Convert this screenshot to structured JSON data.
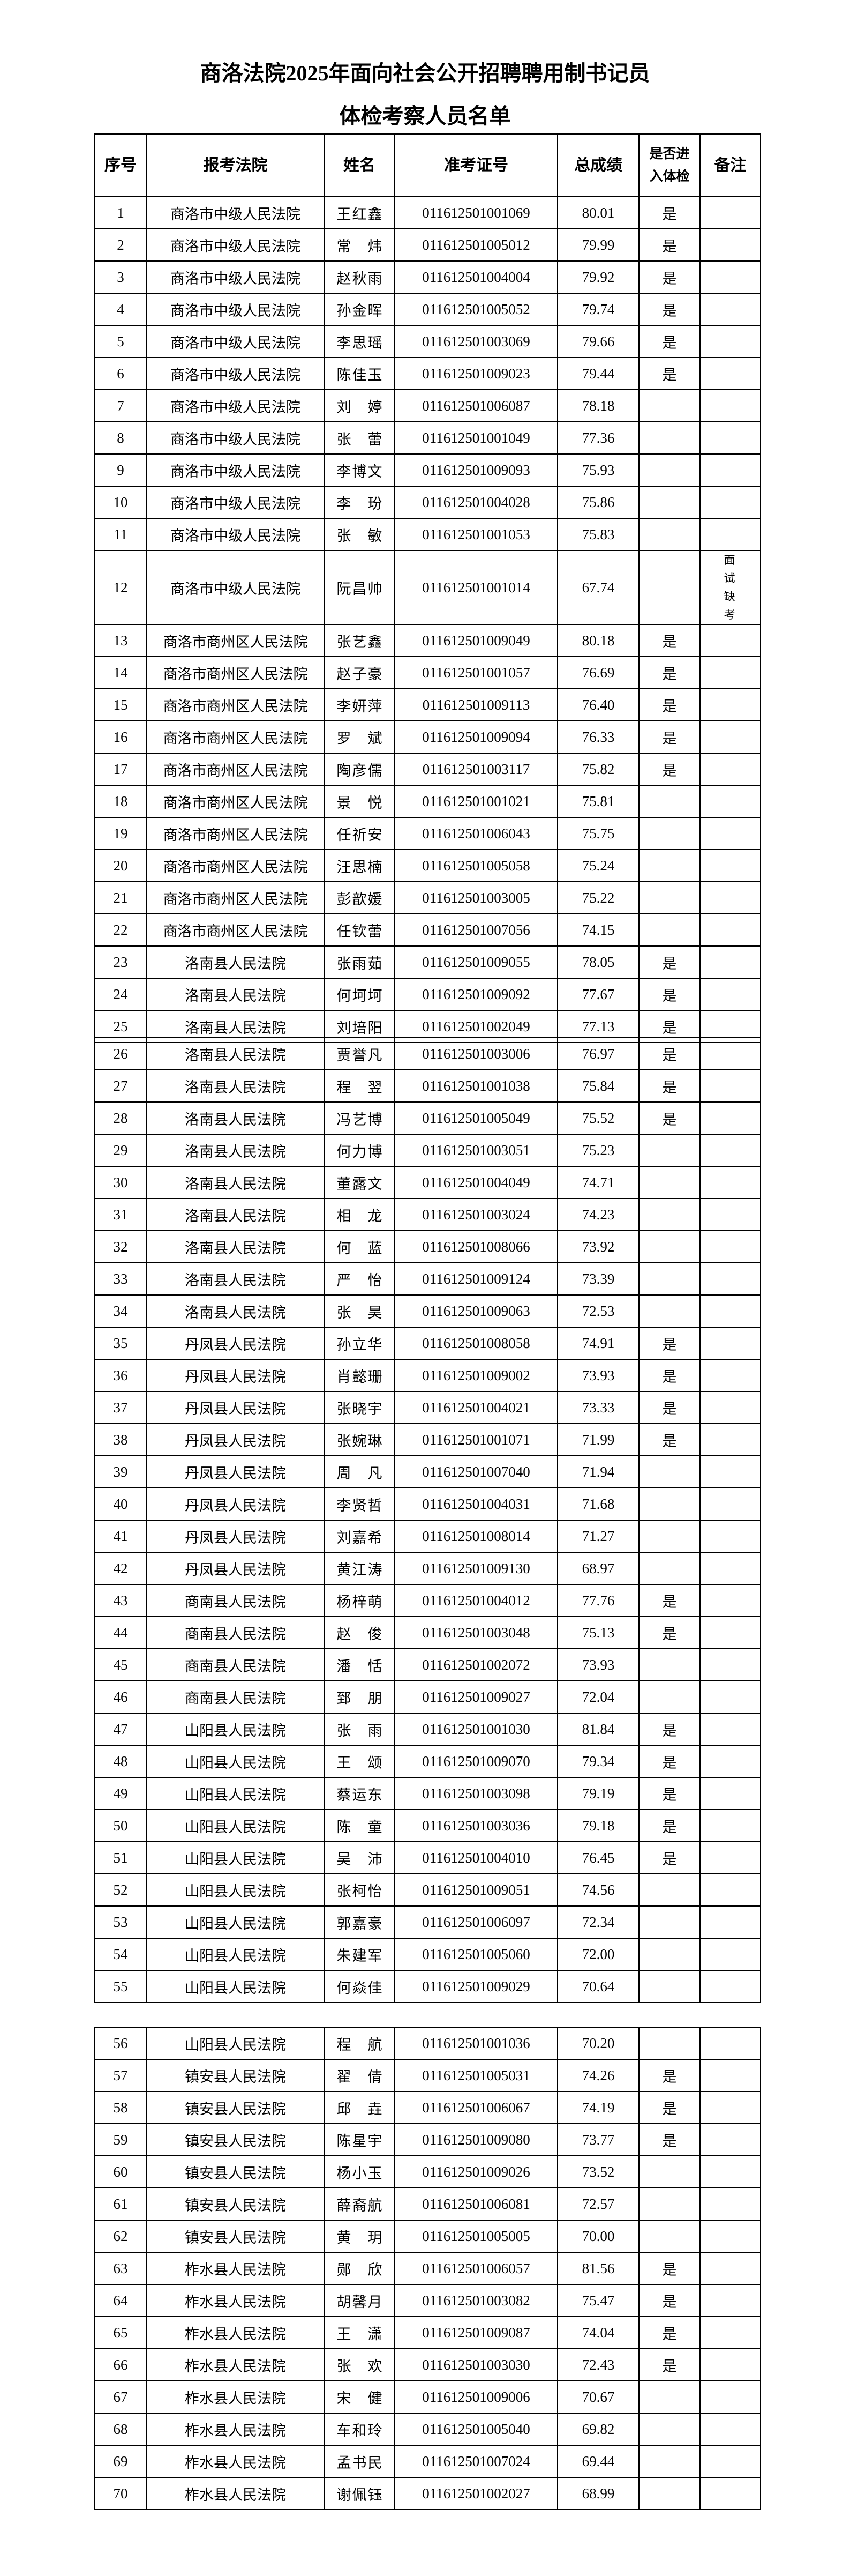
{
  "document": {
    "title_line1": "商洛法院2025年面向社会公开招聘聘用制书记员",
    "title_line2": "体检考察人员名单"
  },
  "table": {
    "headers": {
      "no": "序号",
      "court": "报考法院",
      "name": "姓名",
      "exam_id": "准考证号",
      "score": "总成绩",
      "physical_exam": "是否进入体检",
      "remark": "备注"
    },
    "rows": [
      {
        "no": "1",
        "court": "商洛市中级人民法院",
        "name": "王红鑫",
        "id": "011612501001069",
        "score": "80.01",
        "exam": "是",
        "remark": ""
      },
      {
        "no": "2",
        "court": "商洛市中级人民法院",
        "name": "常炜",
        "id": "011612501005012",
        "score": "79.99",
        "exam": "是",
        "remark": ""
      },
      {
        "no": "3",
        "court": "商洛市中级人民法院",
        "name": "赵秋雨",
        "id": "011612501004004",
        "score": "79.92",
        "exam": "是",
        "remark": ""
      },
      {
        "no": "4",
        "court": "商洛市中级人民法院",
        "name": "孙金晖",
        "id": "011612501005052",
        "score": "79.74",
        "exam": "是",
        "remark": ""
      },
      {
        "no": "5",
        "court": "商洛市中级人民法院",
        "name": "李思瑶",
        "id": "011612501003069",
        "score": "79.66",
        "exam": "是",
        "remark": ""
      },
      {
        "no": "6",
        "court": "商洛市中级人民法院",
        "name": "陈佳玉",
        "id": "011612501009023",
        "score": "79.44",
        "exam": "是",
        "remark": ""
      },
      {
        "no": "7",
        "court": "商洛市中级人民法院",
        "name": "刘婷",
        "id": "011612501006087",
        "score": "78.18",
        "exam": "",
        "remark": ""
      },
      {
        "no": "8",
        "court": "商洛市中级人民法院",
        "name": "张蕾",
        "id": "011612501001049",
        "score": "77.36",
        "exam": "",
        "remark": ""
      },
      {
        "no": "9",
        "court": "商洛市中级人民法院",
        "name": "李博文",
        "id": "011612501009093",
        "score": "75.93",
        "exam": "",
        "remark": ""
      },
      {
        "no": "10",
        "court": "商洛市中级人民法院",
        "name": "李玢",
        "id": "011612501004028",
        "score": "75.86",
        "exam": "",
        "remark": ""
      },
      {
        "no": "11",
        "court": "商洛市中级人民法院",
        "name": "张敏",
        "id": "011612501001053",
        "score": "75.83",
        "exam": "",
        "remark": ""
      },
      {
        "no": "12",
        "court": "商洛市中级人民法院",
        "name": "阮昌帅",
        "id": "011612501001014",
        "score": "67.74",
        "exam": "",
        "remark": "面试缺考"
      },
      {
        "no": "13",
        "court": "商洛市商州区人民法院",
        "name": "张艺鑫",
        "id": "011612501009049",
        "score": "80.18",
        "exam": "是",
        "remark": ""
      },
      {
        "no": "14",
        "court": "商洛市商州区人民法院",
        "name": "赵子豪",
        "id": "011612501001057",
        "score": "76.69",
        "exam": "是",
        "remark": ""
      },
      {
        "no": "15",
        "court": "商洛市商州区人民法院",
        "name": "李妍萍",
        "id": "011612501009113",
        "score": "76.40",
        "exam": "是",
        "remark": ""
      },
      {
        "no": "16",
        "court": "商洛市商州区人民法院",
        "name": "罗斌",
        "id": "011612501009094",
        "score": "76.33",
        "exam": "是",
        "remark": ""
      },
      {
        "no": "17",
        "court": "商洛市商州区人民法院",
        "name": "陶彦儒",
        "id": "011612501003117",
        "score": "75.82",
        "exam": "是",
        "remark": ""
      },
      {
        "no": "18",
        "court": "商洛市商州区人民法院",
        "name": "景悦",
        "id": "011612501001021",
        "score": "75.81",
        "exam": "",
        "remark": ""
      },
      {
        "no": "19",
        "court": "商洛市商州区人民法院",
        "name": "任祈安",
        "id": "011612501006043",
        "score": "75.75",
        "exam": "",
        "remark": ""
      },
      {
        "no": "20",
        "court": "商洛市商州区人民法院",
        "name": "汪思楠",
        "id": "011612501005058",
        "score": "75.24",
        "exam": "",
        "remark": ""
      },
      {
        "no": "21",
        "court": "商洛市商州区人民法院",
        "name": "彭歆媛",
        "id": "011612501003005",
        "score": "75.22",
        "exam": "",
        "remark": ""
      },
      {
        "no": "22",
        "court": "商洛市商州区人民法院",
        "name": "任钦蕾",
        "id": "011612501007056",
        "score": "74.15",
        "exam": "",
        "remark": ""
      },
      {
        "no": "23",
        "court": "洛南县人民法院",
        "name": "张雨茹",
        "id": "011612501009055",
        "score": "78.05",
        "exam": "是",
        "remark": ""
      },
      {
        "no": "24",
        "court": "洛南县人民法院",
        "name": "何坷坷",
        "id": "011612501009092",
        "score": "77.67",
        "exam": "是",
        "remark": ""
      },
      {
        "no": "25",
        "court": "洛南县人民法院",
        "name": "刘培阳",
        "id": "011612501002049",
        "score": "77.13",
        "exam": "是",
        "remark": ""
      },
      {
        "no": "26",
        "court": "洛南县人民法院",
        "name": "贾誉凡",
        "id": "011612501003006",
        "score": "76.97",
        "exam": "是",
        "remark": ""
      },
      {
        "no": "27",
        "court": "洛南县人民法院",
        "name": "程翌",
        "id": "011612501001038",
        "score": "75.84",
        "exam": "是",
        "remark": ""
      },
      {
        "no": "28",
        "court": "洛南县人民法院",
        "name": "冯艺博",
        "id": "011612501005049",
        "score": "75.52",
        "exam": "是",
        "remark": ""
      },
      {
        "no": "29",
        "court": "洛南县人民法院",
        "name": "何力博",
        "id": "011612501003051",
        "score": "75.23",
        "exam": "",
        "remark": ""
      },
      {
        "no": "30",
        "court": "洛南县人民法院",
        "name": "董露文",
        "id": "011612501004049",
        "score": "74.71",
        "exam": "",
        "remark": ""
      },
      {
        "no": "31",
        "court": "洛南县人民法院",
        "name": "相龙",
        "id": "011612501003024",
        "score": "74.23",
        "exam": "",
        "remark": ""
      },
      {
        "no": "32",
        "court": "洛南县人民法院",
        "name": "何蓝",
        "id": "011612501008066",
        "score": "73.92",
        "exam": "",
        "remark": ""
      },
      {
        "no": "33",
        "court": "洛南县人民法院",
        "name": "严怡",
        "id": "011612501009124",
        "score": "73.39",
        "exam": "",
        "remark": ""
      },
      {
        "no": "34",
        "court": "洛南县人民法院",
        "name": "张昊",
        "id": "011612501009063",
        "score": "72.53",
        "exam": "",
        "remark": ""
      },
      {
        "no": "35",
        "court": "丹凤县人民法院",
        "name": "孙立华",
        "id": "011612501008058",
        "score": "74.91",
        "exam": "是",
        "remark": ""
      },
      {
        "no": "36",
        "court": "丹凤县人民法院",
        "name": "肖懿珊",
        "id": "011612501009002",
        "score": "73.93",
        "exam": "是",
        "remark": ""
      },
      {
        "no": "37",
        "court": "丹凤县人民法院",
        "name": "张晓宇",
        "id": "011612501004021",
        "score": "73.33",
        "exam": "是",
        "remark": ""
      },
      {
        "no": "38",
        "court": "丹凤县人民法院",
        "name": "张婉琳",
        "id": "011612501001071",
        "score": "71.99",
        "exam": "是",
        "remark": ""
      },
      {
        "no": "39",
        "court": "丹凤县人民法院",
        "name": "周凡",
        "id": "011612501007040",
        "score": "71.94",
        "exam": "",
        "remark": ""
      },
      {
        "no": "40",
        "court": "丹凤县人民法院",
        "name": "李贤哲",
        "id": "011612501004031",
        "score": "71.68",
        "exam": "",
        "remark": ""
      },
      {
        "no": "41",
        "court": "丹凤县人民法院",
        "name": "刘嘉希",
        "id": "011612501008014",
        "score": "71.27",
        "exam": "",
        "remark": ""
      },
      {
        "no": "42",
        "court": "丹凤县人民法院",
        "name": "黄江涛",
        "id": "011612501009130",
        "score": "68.97",
        "exam": "",
        "remark": ""
      },
      {
        "no": "43",
        "court": "商南县人民法院",
        "name": "杨梓萌",
        "id": "011612501004012",
        "score": "77.76",
        "exam": "是",
        "remark": ""
      },
      {
        "no": "44",
        "court": "商南县人民法院",
        "name": "赵俊",
        "id": "011612501003048",
        "score": "75.13",
        "exam": "是",
        "remark": ""
      },
      {
        "no": "45",
        "court": "商南县人民法院",
        "name": "潘恬",
        "id": "011612501002072",
        "score": "73.93",
        "exam": "",
        "remark": ""
      },
      {
        "no": "46",
        "court": "商南县人民法院",
        "name": "郅朋",
        "id": "011612501009027",
        "score": "72.04",
        "exam": "",
        "remark": ""
      },
      {
        "no": "47",
        "court": "山阳县人民法院",
        "name": "张雨",
        "id": "011612501001030",
        "score": "81.84",
        "exam": "是",
        "remark": ""
      },
      {
        "no": "48",
        "court": "山阳县人民法院",
        "name": "王颂",
        "id": "011612501009070",
        "score": "79.34",
        "exam": "是",
        "remark": ""
      },
      {
        "no": "49",
        "court": "山阳县人民法院",
        "name": "蔡运东",
        "id": "011612501003098",
        "score": "79.19",
        "exam": "是",
        "remark": ""
      },
      {
        "no": "50",
        "court": "山阳县人民法院",
        "name": "陈童",
        "id": "011612501003036",
        "score": "79.18",
        "exam": "是",
        "remark": ""
      },
      {
        "no": "51",
        "court": "山阳县人民法院",
        "name": "吴沛",
        "id": "011612501004010",
        "score": "76.45",
        "exam": "是",
        "remark": ""
      },
      {
        "no": "52",
        "court": "山阳县人民法院",
        "name": "张柯怡",
        "id": "011612501009051",
        "score": "74.56",
        "exam": "",
        "remark": ""
      },
      {
        "no": "53",
        "court": "山阳县人民法院",
        "name": "郭嘉豪",
        "id": "011612501006097",
        "score": "72.34",
        "exam": "",
        "remark": ""
      },
      {
        "no": "54",
        "court": "山阳县人民法院",
        "name": "朱建军",
        "id": "011612501005060",
        "score": "72.00",
        "exam": "",
        "remark": ""
      },
      {
        "no": "55",
        "court": "山阳县人民法院",
        "name": "何焱佳",
        "id": "011612501009029",
        "score": "70.64",
        "exam": "",
        "remark": ""
      },
      {
        "no": "56",
        "court": "山阳县人民法院",
        "name": "程航",
        "id": "011612501001036",
        "score": "70.20",
        "exam": "",
        "remark": ""
      },
      {
        "no": "57",
        "court": "镇安县人民法院",
        "name": "翟倩",
        "id": "011612501005031",
        "score": "74.26",
        "exam": "是",
        "remark": ""
      },
      {
        "no": "58",
        "court": "镇安县人民法院",
        "name": "邱垚",
        "id": "011612501006067",
        "score": "74.19",
        "exam": "是",
        "remark": ""
      },
      {
        "no": "59",
        "court": "镇安县人民法院",
        "name": "陈星宇",
        "id": "011612501009080",
        "score": "73.77",
        "exam": "是",
        "remark": ""
      },
      {
        "no": "60",
        "court": "镇安县人民法院",
        "name": "杨小玉",
        "id": "011612501009026",
        "score": "73.52",
        "exam": "",
        "remark": ""
      },
      {
        "no": "61",
        "court": "镇安县人民法院",
        "name": "薛裔航",
        "id": "011612501006081",
        "score": "72.57",
        "exam": "",
        "remark": ""
      },
      {
        "no": "62",
        "court": "镇安县人民法院",
        "name": "黄玥",
        "id": "011612501005005",
        "score": "70.00",
        "exam": "",
        "remark": ""
      },
      {
        "no": "63",
        "court": "柞水县人民法院",
        "name": "郧欣",
        "id": "011612501006057",
        "score": "81.56",
        "exam": "是",
        "remark": ""
      },
      {
        "no": "64",
        "court": "柞水县人民法院",
        "name": "胡馨月",
        "id": "011612501003082",
        "score": "75.47",
        "exam": "是",
        "remark": ""
      },
      {
        "no": "65",
        "court": "柞水县人民法院",
        "name": "王潇",
        "id": "011612501009087",
        "score": "74.04",
        "exam": "是",
        "remark": ""
      },
      {
        "no": "66",
        "court": "柞水县人民法院",
        "name": "张欢",
        "id": "011612501003030",
        "score": "72.43",
        "exam": "是",
        "remark": ""
      },
      {
        "no": "67",
        "court": "柞水县人民法院",
        "name": "宋健",
        "id": "011612501009006",
        "score": "70.67",
        "exam": "",
        "remark": ""
      },
      {
        "no": "68",
        "court": "柞水县人民法院",
        "name": "车和玲",
        "id": "011612501005040",
        "score": "69.82",
        "exam": "",
        "remark": ""
      },
      {
        "no": "69",
        "court": "柞水县人民法院",
        "name": "孟书民",
        "id": "011612501007024",
        "score": "69.44",
        "exam": "",
        "remark": ""
      },
      {
        "no": "70",
        "court": "柞水县人民法院",
        "name": "谢佩钰",
        "id": "011612501002027",
        "score": "68.99",
        "exam": "",
        "remark": ""
      }
    ]
  }
}
